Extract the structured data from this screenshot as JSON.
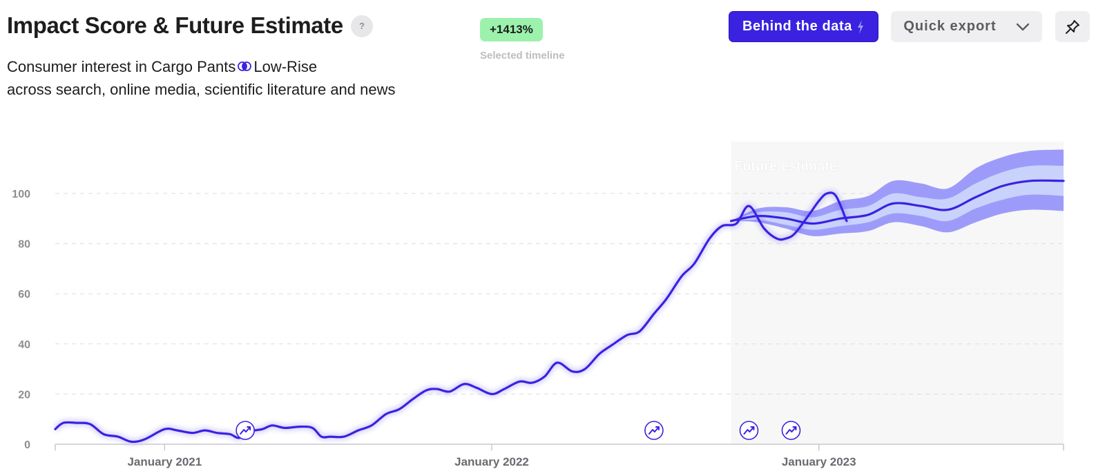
{
  "header": {
    "title": "Impact Score & Future Estimate",
    "help_label": "?",
    "subtitle_line1_a": "Consumer interest in Cargo Pants",
    "subtitle_line1_b": "Low-Rise",
    "subtitle_line2": "across search, online media, scientific literature and news"
  },
  "timeline_badge": {
    "value": "+1413%",
    "caption": "Selected timeline",
    "color": "#9cf2ac"
  },
  "toolbar": {
    "behind_label": "Behind the data",
    "behind_icon": "lightning-icon",
    "export_label": "Quick export",
    "export_icon": "chevron-down-icon",
    "pin_icon": "pin-icon",
    "accent": "#3a22e0"
  },
  "chart_data": {
    "type": "line",
    "xlabel": "",
    "ylabel": "",
    "ylim": [
      0,
      100
    ],
    "yticks": [
      0,
      20,
      40,
      60,
      80,
      100
    ],
    "xlim": [
      "2020-09-01",
      "2023-10-01"
    ],
    "xticks": [
      {
        "date": "2021-01-01",
        "label": "January 2021"
      },
      {
        "date": "2022-01-01",
        "label": "January 2022"
      },
      {
        "date": "2023-01-01",
        "label": "January 2023"
      }
    ],
    "grid": true,
    "line_color": "#3a22e0",
    "series": [
      {
        "points": [
          [
            "2020-09-01",
            6
          ],
          [
            "2020-09-10",
            8.5
          ],
          [
            "2020-09-25",
            8.5
          ],
          [
            "2020-10-10",
            8
          ],
          [
            "2020-10-25",
            4
          ],
          [
            "2020-11-10",
            3
          ],
          [
            "2020-11-25",
            1
          ],
          [
            "2020-12-10",
            2
          ],
          [
            "2021-01-01",
            6
          ],
          [
            "2021-01-15",
            5.5
          ],
          [
            "2021-02-01",
            4.5
          ],
          [
            "2021-02-15",
            5.5
          ],
          [
            "2021-03-01",
            4.5
          ],
          [
            "2021-03-15",
            4
          ],
          [
            "2021-03-25",
            2.5
          ],
          [
            "2021-04-05",
            5
          ],
          [
            "2021-04-20",
            6
          ],
          [
            "2021-05-01",
            7.5
          ],
          [
            "2021-05-15",
            6.5
          ],
          [
            "2021-06-01",
            7
          ],
          [
            "2021-06-15",
            6.5
          ],
          [
            "2021-06-25",
            3
          ],
          [
            "2021-07-05",
            3
          ],
          [
            "2021-07-20",
            3
          ],
          [
            "2021-08-05",
            5.5
          ],
          [
            "2021-08-20",
            7.5
          ],
          [
            "2021-09-05",
            12
          ],
          [
            "2021-09-20",
            14
          ],
          [
            "2021-10-05",
            18
          ],
          [
            "2021-10-20",
            21.5
          ],
          [
            "2021-11-01",
            22
          ],
          [
            "2021-11-15",
            21
          ],
          [
            "2021-12-01",
            24
          ],
          [
            "2021-12-15",
            22.5
          ],
          [
            "2022-01-01",
            20
          ],
          [
            "2022-01-15",
            22
          ],
          [
            "2022-02-01",
            25
          ],
          [
            "2022-02-15",
            24.5
          ],
          [
            "2022-03-01",
            27
          ],
          [
            "2022-03-15",
            32.5
          ],
          [
            "2022-04-01",
            29
          ],
          [
            "2022-04-15",
            30
          ],
          [
            "2022-05-01",
            36
          ],
          [
            "2022-05-15",
            39.5
          ],
          [
            "2022-06-01",
            43.5
          ],
          [
            "2022-06-15",
            45
          ],
          [
            "2022-07-01",
            52
          ],
          [
            "2022-07-15",
            58
          ],
          [
            "2022-08-01",
            67
          ],
          [
            "2022-08-15",
            72
          ],
          [
            "2022-09-01",
            82
          ],
          [
            "2022-09-15",
            87
          ],
          [
            "2022-10-01",
            88
          ],
          [
            "2022-10-15",
            95
          ],
          [
            "2022-11-01",
            86
          ],
          [
            "2022-11-15",
            82
          ],
          [
            "2022-11-25",
            82
          ],
          [
            "2022-12-05",
            84
          ],
          [
            "2022-12-20",
            91
          ],
          [
            "2023-01-01",
            97
          ],
          [
            "2023-01-10",
            100
          ],
          [
            "2023-01-20",
            99
          ],
          [
            "2023-02-01",
            89
          ]
        ]
      }
    ],
    "forecast": {
      "label": "Future estimate",
      "start": "2022-09-25",
      "center": [
        [
          "2022-09-25",
          89
        ],
        [
          "2022-10-25",
          91
        ],
        [
          "2022-11-25",
          90
        ],
        [
          "2022-12-25",
          88
        ],
        [
          "2023-01-25",
          90
        ],
        [
          "2023-02-25",
          91.5
        ],
        [
          "2023-03-25",
          96
        ],
        [
          "2023-04-25",
          95
        ],
        [
          "2023-05-25",
          93.5
        ],
        [
          "2023-06-25",
          98.5
        ],
        [
          "2023-07-25",
          103
        ],
        [
          "2023-08-25",
          105
        ],
        [
          "2023-10-01",
          105
        ]
      ],
      "inner_band": [
        [
          "2022-09-25",
          89,
          89
        ],
        [
          "2022-10-25",
          92.5,
          89.5
        ],
        [
          "2022-11-25",
          92.5,
          87.5
        ],
        [
          "2022-12-25",
          90.5,
          85.5
        ],
        [
          "2023-01-25",
          93.5,
          87
        ],
        [
          "2023-02-25",
          95,
          88.5
        ],
        [
          "2023-03-25",
          100,
          92
        ],
        [
          "2023-04-25",
          98.5,
          91
        ],
        [
          "2023-05-25",
          98,
          89
        ],
        [
          "2023-06-25",
          104,
          94
        ],
        [
          "2023-07-25",
          108.5,
          97.5
        ],
        [
          "2023-08-25",
          111,
          99.5
        ],
        [
          "2023-10-01",
          111,
          99
        ]
      ],
      "outer_band": [
        [
          "2022-09-25",
          89,
          89
        ],
        [
          "2022-10-25",
          94,
          88.5
        ],
        [
          "2022-11-25",
          94.5,
          86
        ],
        [
          "2022-12-25",
          93,
          83
        ],
        [
          "2023-01-25",
          97,
          84
        ],
        [
          "2023-02-25",
          99,
          85
        ],
        [
          "2023-03-25",
          105,
          88.5
        ],
        [
          "2023-04-25",
          104,
          87
        ],
        [
          "2023-05-25",
          102,
          84.5
        ],
        [
          "2023-06-25",
          110,
          88.5
        ],
        [
          "2023-07-25",
          114.5,
          92
        ],
        [
          "2023-08-25",
          117,
          93.5
        ],
        [
          "2023-10-01",
          117.5,
          93
        ]
      ],
      "inner_color": "#c8d2fb",
      "outer_color": "#9d9bfa",
      "bg_color": "#f7f7f8"
    },
    "event_markers": [
      "2021-04-01",
      "2022-07-01",
      "2022-10-15",
      "2022-12-01"
    ],
    "event_icon": "trend-icon"
  }
}
